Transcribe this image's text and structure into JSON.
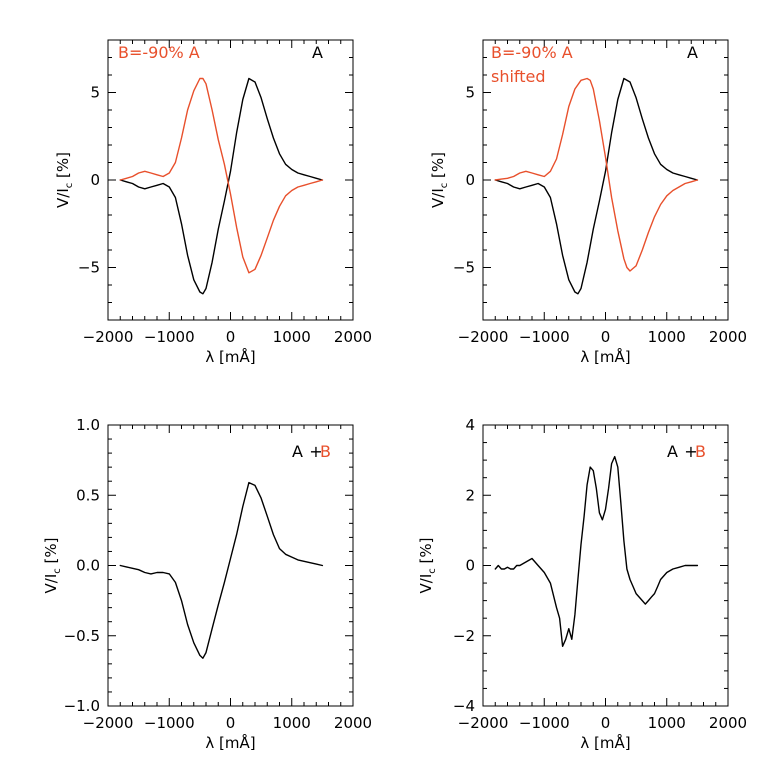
{
  "colors": {
    "black": "#000000",
    "red": "#e8502c"
  },
  "chart_data": [
    {
      "type": "line",
      "xlabel": "λ [mÅ]",
      "ylabel": "V/I",
      "ylabel_sub": "c",
      "ylabel_unit": "[%]",
      "xlim": [
        -2000,
        2000
      ],
      "ylim": [
        -8,
        8
      ],
      "xticks": [
        -2000,
        -1000,
        0,
        1000,
        2000
      ],
      "yticks": [
        -5,
        0,
        5
      ],
      "annotations": [
        {
          "text": "B=-90% A",
          "color": "#e8502c",
          "pos": "top-left"
        },
        {
          "text": "A",
          "color": "#000000",
          "pos": "top-right"
        }
      ],
      "series": [
        {
          "color": "#000000",
          "x": [
            -1800,
            -1700,
            -1600,
            -1500,
            -1400,
            -1300,
            -1200,
            -1100,
            -1000,
            -900,
            -800,
            -700,
            -600,
            -500,
            -450,
            -400,
            -300,
            -200,
            -100,
            0,
            100,
            200,
            300,
            400,
            500,
            600,
            700,
            800,
            900,
            1000,
            1100,
            1200,
            1300,
            1400,
            1500
          ],
          "y": [
            0,
            -0.1,
            -0.2,
            -0.4,
            -0.5,
            -0.4,
            -0.3,
            -0.2,
            -0.4,
            -1.0,
            -2.5,
            -4.3,
            -5.7,
            -6.4,
            -6.5,
            -6.2,
            -4.7,
            -2.8,
            -1.2,
            0.5,
            2.7,
            4.6,
            5.8,
            5.6,
            4.7,
            3.5,
            2.4,
            1.5,
            0.9,
            0.6,
            0.4,
            0.3,
            0.2,
            0.1,
            0
          ]
        },
        {
          "color": "#e8502c",
          "x": [
            -1800,
            -1700,
            -1600,
            -1500,
            -1400,
            -1300,
            -1200,
            -1100,
            -1000,
            -900,
            -800,
            -700,
            -600,
            -500,
            -450,
            -400,
            -300,
            -200,
            -100,
            0,
            100,
            200,
            300,
            400,
            500,
            600,
            700,
            800,
            900,
            1000,
            1100,
            1200,
            1300,
            1400,
            1500
          ],
          "y": [
            0,
            0.1,
            0.2,
            0.4,
            0.5,
            0.4,
            0.3,
            0.2,
            0.4,
            1.0,
            2.4,
            4.0,
            5.1,
            5.8,
            5.8,
            5.5,
            4.0,
            2.3,
            0.9,
            -0.8,
            -2.7,
            -4.4,
            -5.3,
            -5.1,
            -4.3,
            -3.3,
            -2.3,
            -1.5,
            -0.9,
            -0.6,
            -0.4,
            -0.3,
            -0.2,
            -0.1,
            0
          ]
        }
      ]
    },
    {
      "type": "line",
      "xlabel": "λ [mÅ]",
      "ylabel": "V/I",
      "ylabel_sub": "c",
      "ylabel_unit": "[%]",
      "xlim": [
        -2000,
        2000
      ],
      "ylim": [
        -8,
        8
      ],
      "xticks": [
        -2000,
        -1000,
        0,
        1000,
        2000
      ],
      "yticks": [
        -5,
        0,
        5
      ],
      "annotations": [
        {
          "text": "B=-90% A",
          "color": "#e8502c",
          "pos": "top-left"
        },
        {
          "text": "shifted",
          "color": "#e8502c",
          "pos": "top-left-second-line"
        },
        {
          "text": "A",
          "color": "#000000",
          "pos": "top-right"
        }
      ],
      "series": [
        {
          "color": "#000000",
          "x": [
            -1800,
            -1700,
            -1600,
            -1500,
            -1400,
            -1300,
            -1200,
            -1100,
            -1000,
            -900,
            -800,
            -700,
            -600,
            -500,
            -450,
            -400,
            -300,
            -200,
            -100,
            0,
            100,
            200,
            300,
            400,
            500,
            600,
            700,
            800,
            900,
            1000,
            1100,
            1200,
            1300,
            1400,
            1500
          ],
          "y": [
            0,
            -0.1,
            -0.2,
            -0.4,
            -0.5,
            -0.4,
            -0.3,
            -0.2,
            -0.4,
            -1.0,
            -2.5,
            -4.3,
            -5.7,
            -6.4,
            -6.5,
            -6.2,
            -4.7,
            -2.8,
            -1.2,
            0.5,
            2.7,
            4.6,
            5.8,
            5.6,
            4.7,
            3.5,
            2.4,
            1.5,
            0.9,
            0.6,
            0.4,
            0.3,
            0.2,
            0.1,
            0
          ]
        },
        {
          "color": "#e8502c",
          "x": [
            -1800,
            -1700,
            -1600,
            -1500,
            -1400,
            -1300,
            -1200,
            -1100,
            -1000,
            -900,
            -800,
            -700,
            -600,
            -500,
            -400,
            -300,
            -250,
            -200,
            -100,
            0,
            100,
            200,
            300,
            350,
            400,
            500,
            600,
            700,
            800,
            900,
            1000,
            1100,
            1200,
            1300,
            1400,
            1500
          ],
          "y": [
            0,
            0.05,
            0.1,
            0.2,
            0.4,
            0.5,
            0.4,
            0.3,
            0.2,
            0.5,
            1.2,
            2.6,
            4.2,
            5.2,
            5.7,
            5.8,
            5.7,
            5.2,
            3.4,
            1.3,
            -1.0,
            -2.9,
            -4.5,
            -5.0,
            -5.2,
            -4.9,
            -4.0,
            -3.0,
            -2.1,
            -1.4,
            -0.9,
            -0.6,
            -0.4,
            -0.2,
            -0.1,
            0
          ]
        }
      ]
    },
    {
      "type": "line",
      "xlabel": "λ [mÅ]",
      "ylabel": "V/I",
      "ylabel_sub": "c",
      "ylabel_unit": "[%]",
      "xlim": [
        -2000,
        2000
      ],
      "ylim": [
        -1.0,
        1.0
      ],
      "xticks": [
        -2000,
        -1000,
        0,
        1000,
        2000
      ],
      "yticks": [
        -1.0,
        -0.5,
        0.0,
        0.5,
        1.0
      ],
      "ytick_labels": [
        "-1.0",
        "-0.5",
        "0.0",
        "0.5",
        "1.0"
      ],
      "annotations": [
        {
          "text": "A",
          "color": "#000000",
          "pos": "top-right"
        },
        {
          "text": "+",
          "color": "#000000",
          "pos": "top-right"
        },
        {
          "text": "B",
          "color": "#e8502c",
          "pos": "top-right"
        }
      ],
      "series": [
        {
          "color": "#000000",
          "x": [
            -1800,
            -1700,
            -1600,
            -1500,
            -1400,
            -1300,
            -1200,
            -1100,
            -1000,
            -900,
            -800,
            -700,
            -600,
            -500,
            -450,
            -400,
            -300,
            -200,
            -100,
            0,
            100,
            200,
            300,
            400,
            500,
            600,
            700,
            800,
            900,
            1000,
            1100,
            1200,
            1300,
            1400,
            1500
          ],
          "y": [
            0,
            -0.01,
            -0.02,
            -0.03,
            -0.05,
            -0.06,
            -0.05,
            -0.05,
            -0.06,
            -0.12,
            -0.25,
            -0.42,
            -0.55,
            -0.64,
            -0.66,
            -0.62,
            -0.45,
            -0.28,
            -0.12,
            0.05,
            0.22,
            0.42,
            0.59,
            0.57,
            0.48,
            0.35,
            0.22,
            0.12,
            0.08,
            0.06,
            0.04,
            0.03,
            0.02,
            0.01,
            0
          ]
        }
      ]
    },
    {
      "type": "line",
      "xlabel": "λ [mÅ]",
      "ylabel": "V/I",
      "ylabel_sub": "c",
      "ylabel_unit": "[%]",
      "xlim": [
        -2000,
        2000
      ],
      "ylim": [
        -4,
        4
      ],
      "xticks": [
        -2000,
        -1000,
        0,
        1000,
        2000
      ],
      "yticks": [
        -4,
        -2,
        0,
        2,
        4
      ],
      "annotations": [
        {
          "text": "A",
          "color": "#000000",
          "pos": "top-right"
        },
        {
          "text": "+",
          "color": "#000000",
          "pos": "top-right"
        },
        {
          "text": "B",
          "color": "#e8502c",
          "pos": "top-right"
        }
      ],
      "series": [
        {
          "color": "#000000",
          "x": [
            -1800,
            -1750,
            -1700,
            -1650,
            -1600,
            -1550,
            -1500,
            -1450,
            -1400,
            -1300,
            -1200,
            -1100,
            -1000,
            -900,
            -800,
            -750,
            -700,
            -650,
            -600,
            -550,
            -500,
            -450,
            -400,
            -350,
            -300,
            -250,
            -200,
            -150,
            -100,
            -50,
            0,
            50,
            100,
            150,
            200,
            250,
            300,
            350,
            400,
            450,
            500,
            550,
            600,
            650,
            700,
            750,
            800,
            850,
            900,
            1000,
            1100,
            1200,
            1300,
            1400,
            1500
          ],
          "y": [
            -0.1,
            0.0,
            -0.1,
            -0.1,
            -0.05,
            -0.1,
            -0.1,
            0.0,
            0.0,
            0.1,
            0.2,
            0.0,
            -0.2,
            -0.5,
            -1.2,
            -1.5,
            -2.3,
            -2.1,
            -1.8,
            -2.1,
            -1.4,
            -0.4,
            0.6,
            1.4,
            2.3,
            2.8,
            2.7,
            2.2,
            1.5,
            1.3,
            1.6,
            2.2,
            2.9,
            3.1,
            2.8,
            1.8,
            0.7,
            -0.1,
            -0.4,
            -0.6,
            -0.8,
            -0.9,
            -1.0,
            -1.1,
            -1.0,
            -0.9,
            -0.8,
            -0.6,
            -0.4,
            -0.2,
            -0.1,
            -0.05,
            0.0,
            0.0,
            0.0
          ]
        }
      ]
    }
  ]
}
